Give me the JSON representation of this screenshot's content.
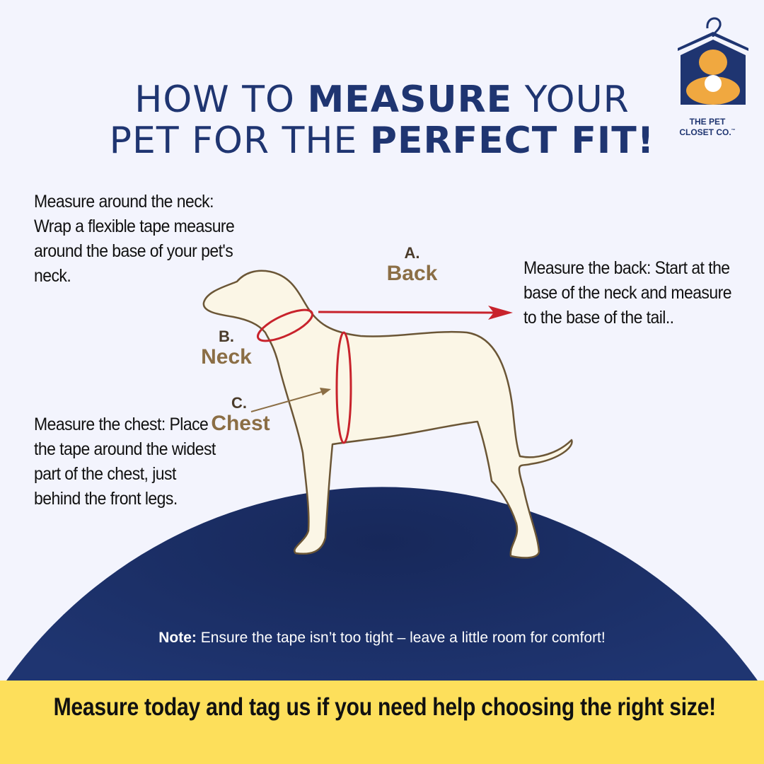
{
  "title": {
    "line1_regular_a": "HOW TO ",
    "line1_bold": "MEASURE",
    "line1_regular_b": " YOUR",
    "line2_regular": "PET FOR THE ",
    "line2_bold": "PERFECT FIT",
    "line2_end": "!"
  },
  "logo": {
    "line1": "THE PET",
    "line2": "CLOSET CO.",
    "tm": "™"
  },
  "instructions": {
    "neck": "Measure around the neck: Wrap a flexible tape measure around the base of your pet's neck.",
    "back": "Measure the back: Start at the base of the neck and measure to the base of the tail..",
    "chest": "Measure the chest: Place the tape around the widest part of the chest, just behind the front legs."
  },
  "labels": {
    "back": {
      "letter": "A.",
      "word": "Back"
    },
    "neck": {
      "letter": "B.",
      "word": "Neck"
    },
    "chest": {
      "letter": "C.",
      "word": "Chest"
    }
  },
  "note": {
    "label": "Note:",
    "text": " Ensure the tape isn’t too tight – leave a little room for comfort!"
  },
  "cta": "Measure today and tag us if you need help choosing the right size!",
  "colors": {
    "navy": "#1f3571",
    "yellow": "#fddf5b",
    "tape": "#c8232c",
    "label_brown": "#8b6e45",
    "background": "#f3f4fd"
  }
}
